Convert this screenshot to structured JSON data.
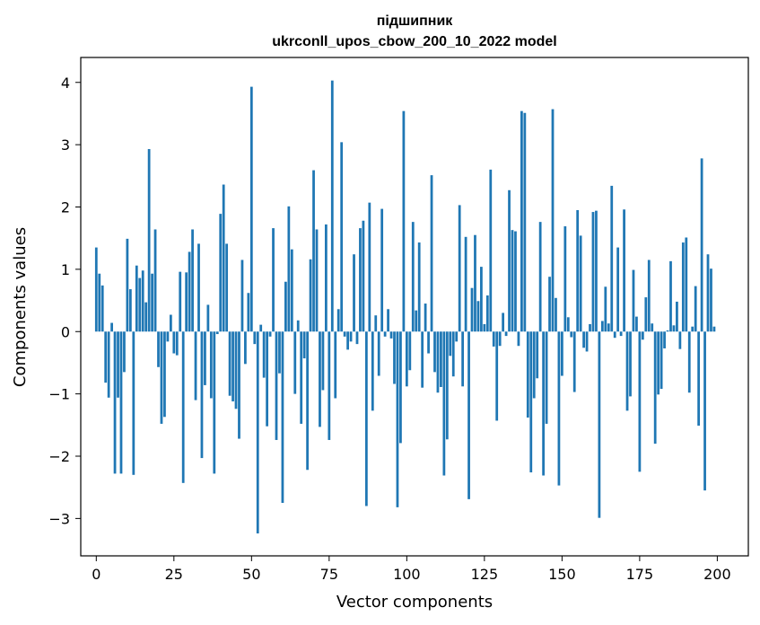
{
  "chart_data": {
    "type": "bar",
    "title": "підшипник",
    "subtitle": "ukrconll_upos_cbow_200_10_2022 model",
    "xlabel": "Vector components",
    "ylabel": "Components values",
    "xlim": [
      -5,
      210
    ],
    "ylim": [
      -3.6,
      4.4
    ],
    "xticks": [
      0,
      25,
      50,
      75,
      100,
      125,
      150,
      175,
      200
    ],
    "yticks": [
      -3,
      -2,
      -1,
      0,
      1,
      2,
      3,
      4
    ],
    "xtick_labels": [
      "0",
      "25",
      "50",
      "75",
      "100",
      "125",
      "150",
      "175",
      "200"
    ],
    "ytick_labels": [
      "−3",
      "−2",
      "−1",
      "0",
      "1",
      "2",
      "3",
      "4"
    ],
    "grid": false,
    "bar_color": "#1f77b4",
    "values": [
      1.35,
      0.93,
      0.74,
      -0.82,
      -1.06,
      0.14,
      -2.28,
      -1.06,
      -2.28,
      -0.65,
      1.49,
      0.68,
      -2.3,
      1.06,
      0.86,
      0.98,
      0.47,
      2.93,
      0.93,
      1.64,
      -0.57,
      -1.48,
      -1.37,
      -0.16,
      0.27,
      -0.35,
      -0.38,
      0.96,
      -2.43,
      0.95,
      1.28,
      1.64,
      -1.1,
      1.41,
      -2.03,
      -0.86,
      0.43,
      -1.07,
      -2.28,
      -0.04,
      1.89,
      2.36,
      1.41,
      -1.03,
      -1.12,
      -1.24,
      -1.72,
      1.15,
      -0.52,
      0.62,
      3.93,
      -0.2,
      -3.24,
      0.11,
      -0.74,
      -1.52,
      -0.08,
      1.66,
      -1.74,
      -0.67,
      -2.75,
      0.8,
      2.01,
      1.32,
      -1.0,
      0.18,
      -1.48,
      -0.43,
      -2.22,
      1.16,
      2.59,
      1.64,
      -1.53,
      -0.94,
      1.72,
      -1.74,
      4.03,
      -1.07,
      0.36,
      3.04,
      -0.08,
      -0.29,
      -0.16,
      1.24,
      -0.2,
      1.66,
      1.78,
      -2.8,
      2.07,
      -1.27,
      0.26,
      -0.71,
      1.97,
      -0.08,
      0.36,
      -0.11,
      -0.84,
      -2.82,
      -1.79,
      3.54,
      -0.88,
      -0.62,
      1.76,
      0.34,
      1.43,
      -0.9,
      0.45,
      -0.35,
      2.51,
      -0.65,
      -0.98,
      -0.89,
      -2.31,
      -1.73,
      -0.39,
      -0.72,
      -0.16,
      2.03,
      -0.88,
      1.52,
      -2.69,
      0.7,
      1.55,
      0.49,
      1.04,
      0.12,
      0.58,
      2.6,
      -0.24,
      -1.43,
      -0.23,
      0.3,
      -0.07,
      2.27,
      1.63,
      1.61,
      -0.23,
      3.54,
      3.51,
      -1.38,
      -2.26,
      -1.07,
      -0.75,
      1.76,
      -2.31,
      -1.48,
      0.88,
      3.57,
      0.54,
      -2.47,
      -0.71,
      1.69,
      0.23,
      -0.09,
      -0.97,
      1.95,
      1.54,
      -0.26,
      -0.32,
      0.12,
      1.92,
      1.94,
      -2.99,
      0.17,
      0.72,
      0.13,
      2.34,
      -0.1,
      1.35,
      -0.07,
      1.96,
      -1.27,
      -1.04,
      0.99,
      0.24,
      -2.25,
      -0.13,
      0.55,
      1.15,
      0.13,
      -1.8,
      -1.01,
      -0.92,
      -0.27,
      0.02,
      1.13,
      0.1,
      0.48,
      -0.28,
      1.43,
      1.51,
      -0.98,
      0.08,
      0.73,
      -1.51,
      2.78,
      -2.55,
      1.24,
      1.01,
      0.08
    ]
  }
}
